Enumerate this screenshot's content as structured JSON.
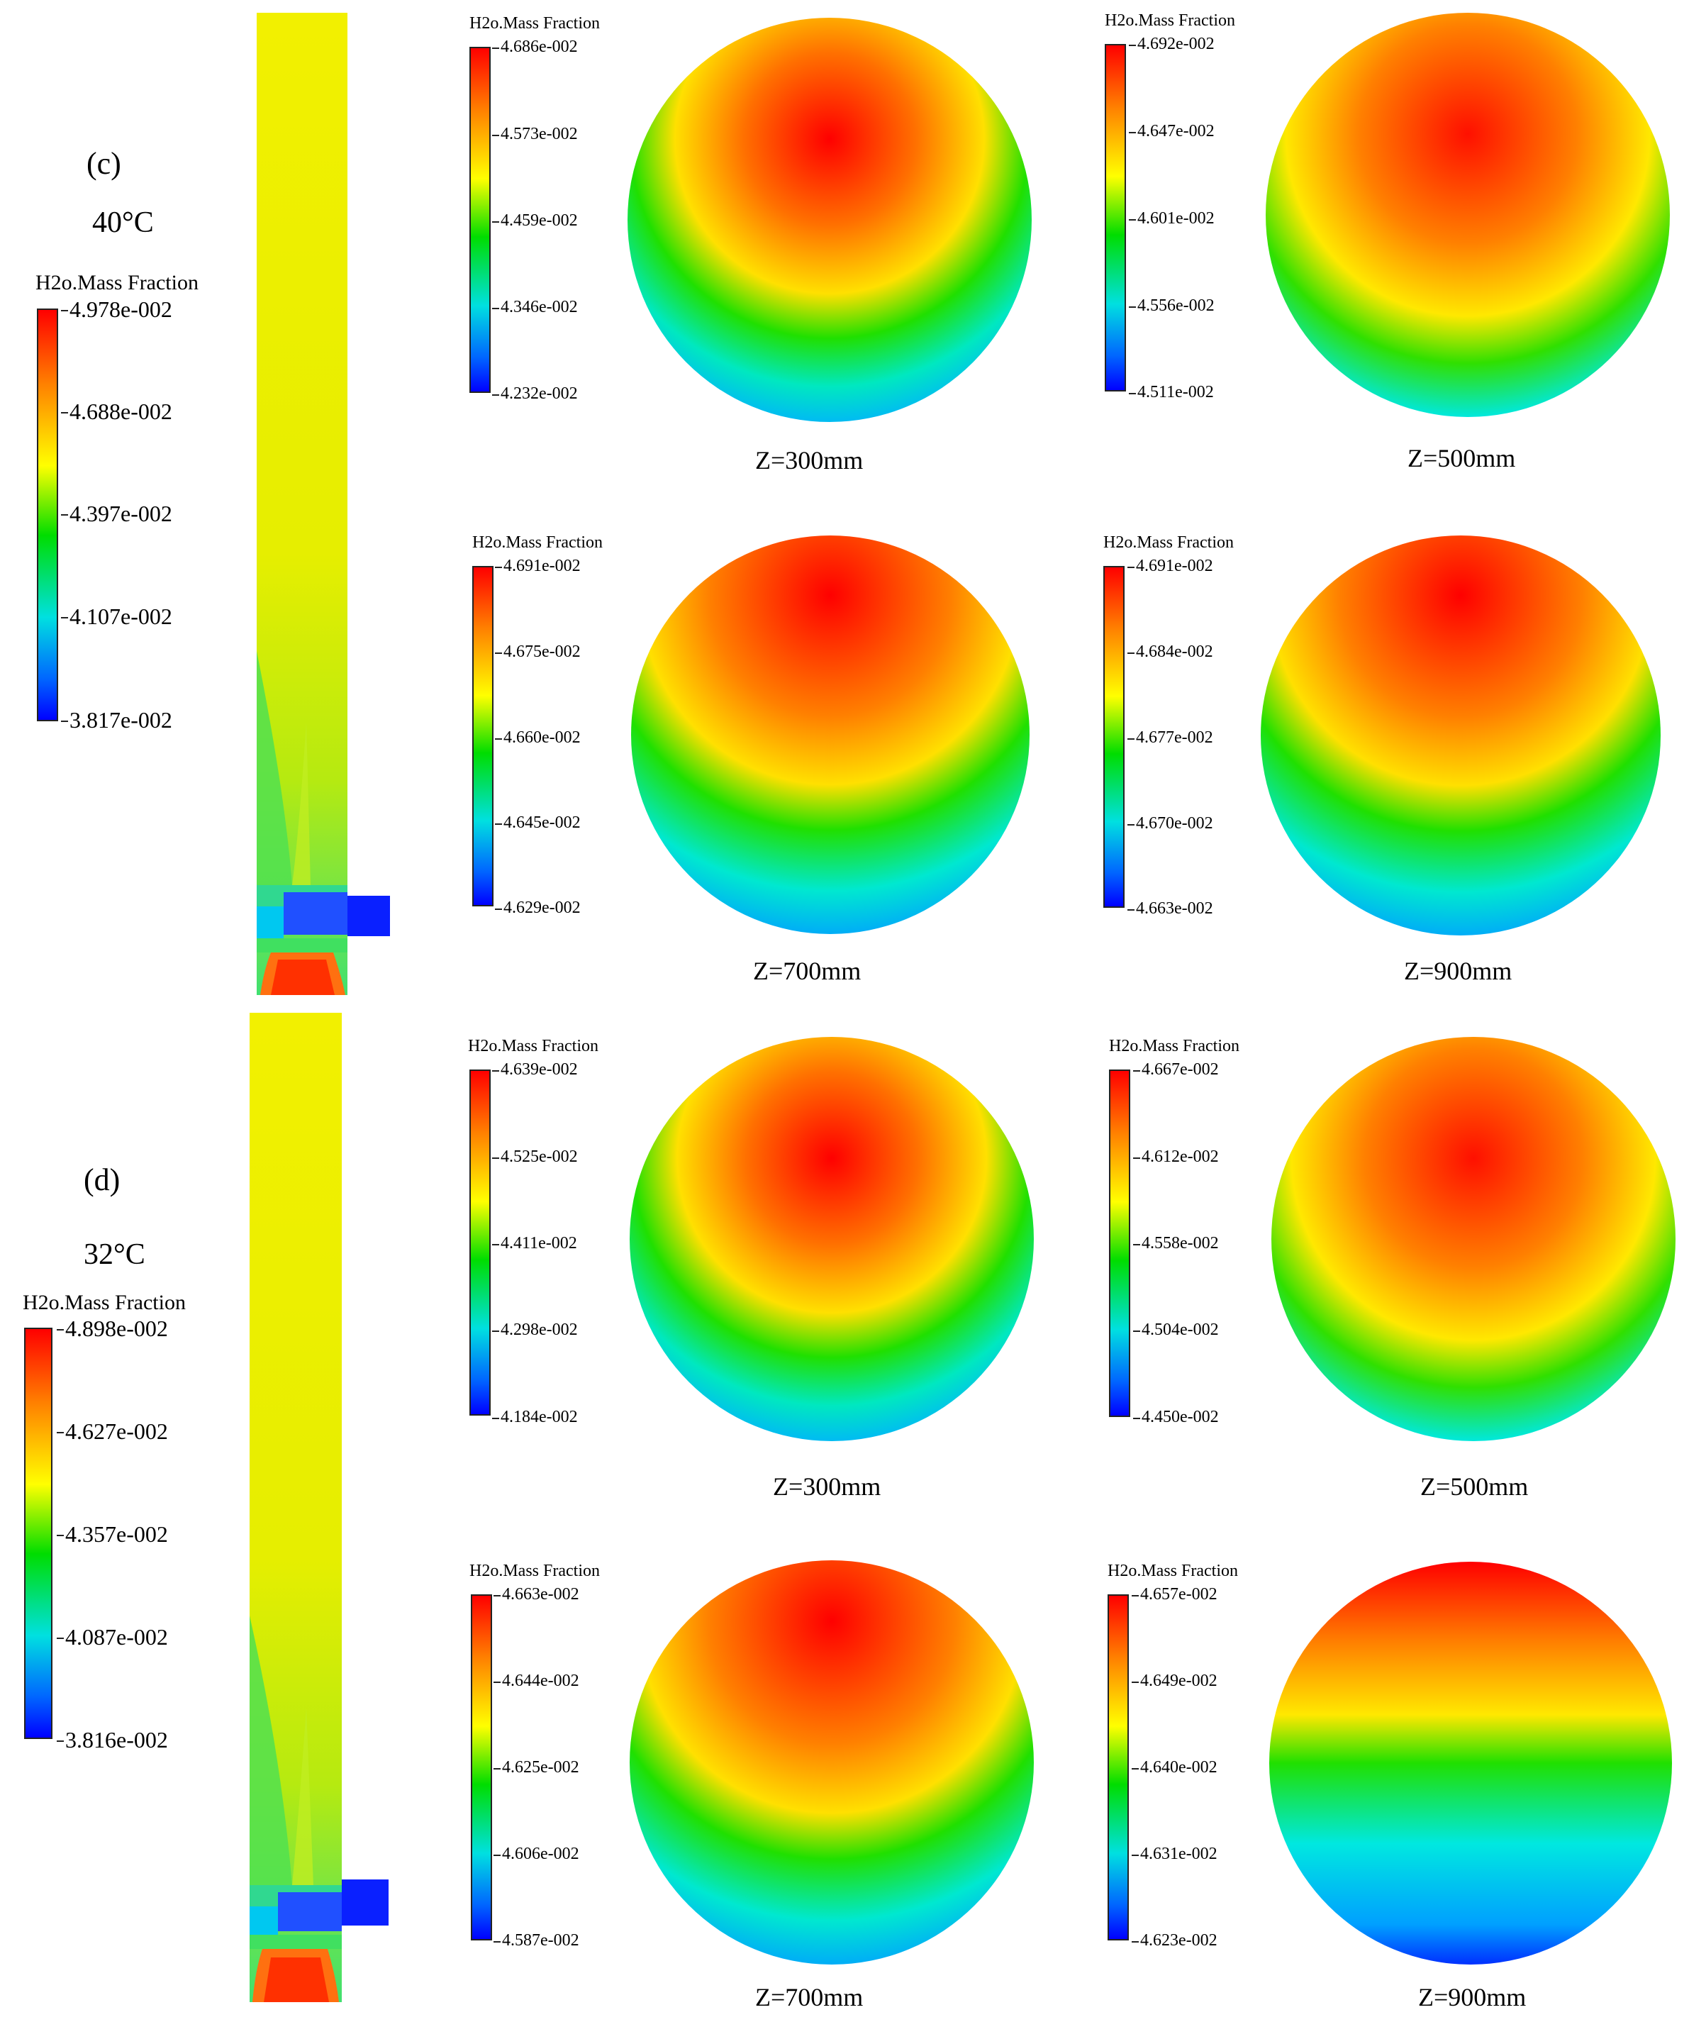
{
  "panel_c": {
    "label": "(c)",
    "temperature": "40°C",
    "main_legend": {
      "title": "H2o.Mass Fraction",
      "ticks": [
        "4.978e-002",
        "4.688e-002",
        "4.397e-002",
        "4.107e-002",
        "3.817e-002"
      ]
    },
    "sections": [
      {
        "z_label": "Z=300mm",
        "legend_title": "H2o.Mass Fraction",
        "ticks": [
          "4.686e-002",
          "4.573e-002",
          "4.459e-002",
          "4.346e-002",
          "4.232e-002"
        ]
      },
      {
        "z_label": "Z=500mm",
        "legend_title": "H2o.Mass Fraction",
        "ticks": [
          "4.692e-002",
          "4.647e-002",
          "4.601e-002",
          "4.556e-002",
          "4.511e-002"
        ]
      },
      {
        "z_label": "Z=700mm",
        "legend_title": "H2o.Mass Fraction",
        "ticks": [
          "4.691e-002",
          "4.675e-002",
          "4.660e-002",
          "4.645e-002",
          "4.629e-002"
        ]
      },
      {
        "z_label": "Z=900mm",
        "legend_title": "H2o.Mass Fraction",
        "ticks": [
          "4.691e-002",
          "4.684e-002",
          "4.677e-002",
          "4.670e-002",
          "4.663e-002"
        ]
      }
    ]
  },
  "panel_d": {
    "label": "(d)",
    "temperature": "32°C",
    "main_legend": {
      "title": "H2o.Mass Fraction",
      "ticks": [
        "4.898e-002",
        "4.627e-002",
        "4.357e-002",
        "4.087e-002",
        "3.816e-002"
      ]
    },
    "sections": [
      {
        "z_label": "Z=300mm",
        "legend_title": "H2o.Mass Fraction",
        "ticks": [
          "4.639e-002",
          "4.525e-002",
          "4.411e-002",
          "4.298e-002",
          "4.184e-002"
        ]
      },
      {
        "z_label": "Z=500mm",
        "legend_title": "H2o.Mass Fraction",
        "ticks": [
          "4.667e-002",
          "4.612e-002",
          "4.558e-002",
          "4.504e-002",
          "4.450e-002"
        ]
      },
      {
        "z_label": "Z=700mm",
        "legend_title": "H2o.Mass Fraction",
        "ticks": [
          "4.663e-002",
          "4.644e-002",
          "4.625e-002",
          "4.606e-002",
          "4.587e-002"
        ]
      },
      {
        "z_label": "Z=900mm",
        "legend_title": "H2o.Mass Fraction",
        "ticks": [
          "4.657e-002",
          "4.649e-002",
          "4.640e-002",
          "4.631e-002",
          "4.623e-002"
        ]
      }
    ]
  }
}
